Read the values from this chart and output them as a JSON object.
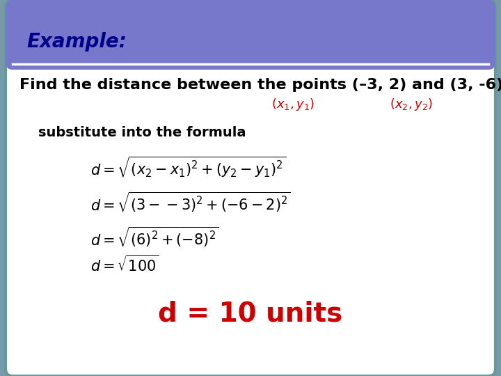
{
  "header_text": "Example:",
  "header_bg_color": "#7777CC",
  "header_text_color": "#000088",
  "body_bg_color": "#FFFFFF",
  "outer_bg_color": "#7799AA",
  "border_color": "#669999",
  "title_line": "Find the distance between the points (–3, 2) and (3, ‑6)",
  "label1": "$(x_1, y_1)$",
  "label2": "$(x_2, y_2)$",
  "label_color": "#CC0000",
  "substitute_text": "substitute into the formula",
  "formula1": "$d = \\sqrt{(x_2 - x_1)^2 + (y_2 - y_1)^2}$",
  "formula2": "$d = \\sqrt{(3--3)^2 + (-6-2)^2}$",
  "formula3": "$d = \\sqrt{(6)^2 + (-8)^2}$",
  "formula4": "$d = \\sqrt{100}$",
  "answer": "d = 10 units",
  "answer_color": "#CC0000",
  "body_text_color": "#000000",
  "title_fontsize": 16,
  "header_fontsize": 20,
  "formula_fontsize": 15,
  "answer_fontsize": 28,
  "substitute_fontsize": 14,
  "label_fontsize": 13
}
